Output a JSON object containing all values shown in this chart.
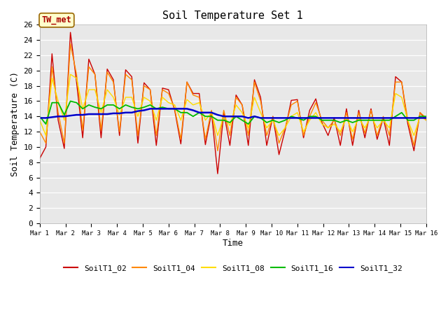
{
  "title": "Soil Temperature Set 1",
  "xlabel": "Time",
  "ylabel": "Soil Temperature (C)",
  "ylim": [
    0,
    26
  ],
  "xlim": [
    0,
    15
  ],
  "plot_bg": "#e8e8e8",
  "annotation": "TW_met",
  "xtick_labels": [
    "Mar 1",
    "Mar 2",
    "Mar 3",
    "Mar 4",
    "Mar 5",
    "Mar 6",
    "Mar 7",
    "Mar 8",
    "Mar 9",
    "Mar 10",
    "Mar 11",
    "Mar 12",
    "Mar 13",
    "Mar 14",
    "Mar 15",
    "Mar 16"
  ],
  "series_order": [
    "SoilT1_02",
    "SoilT1_04",
    "SoilT1_08",
    "SoilT1_16",
    "SoilT1_32"
  ],
  "series": {
    "SoilT1_02": {
      "color": "#cc0000",
      "lw": 1.0,
      "values": [
        8.5,
        10.0,
        22.2,
        13.5,
        9.8,
        25.0,
        18.5,
        11.2,
        21.5,
        19.5,
        11.2,
        20.2,
        18.8,
        11.5,
        20.1,
        19.2,
        10.5,
        18.4,
        17.5,
        10.2,
        17.7,
        17.5,
        14.8,
        10.4,
        18.5,
        17.0,
        17.0,
        10.3,
        14.5,
        6.5,
        14.5,
        10.2,
        16.8,
        15.5,
        10.2,
        18.8,
        16.5,
        10.2,
        14.0,
        9.0,
        12.2,
        16.1,
        16.2,
        11.2,
        14.8,
        16.3,
        13.2,
        11.5,
        13.8,
        10.2,
        15.0,
        10.2,
        14.8,
        11.2,
        15.0,
        11.0,
        13.8,
        10.2,
        19.2,
        18.5,
        13.0,
        9.5,
        14.5,
        13.5
      ]
    },
    "SoilT1_04": {
      "color": "#ff8800",
      "lw": 1.0,
      "values": [
        12.0,
        10.5,
        20.5,
        14.5,
        10.5,
        23.5,
        19.5,
        12.2,
        20.5,
        19.5,
        12.2,
        19.8,
        18.5,
        12.0,
        19.5,
        18.8,
        11.5,
        18.0,
        17.5,
        11.5,
        17.5,
        17.0,
        15.0,
        11.0,
        18.5,
        16.8,
        16.5,
        11.0,
        14.8,
        9.5,
        14.8,
        11.5,
        16.5,
        15.5,
        11.5,
        18.5,
        16.0,
        11.5,
        14.0,
        10.5,
        12.5,
        15.5,
        16.0,
        11.5,
        14.0,
        15.8,
        13.5,
        12.5,
        13.5,
        11.5,
        14.5,
        11.0,
        14.5,
        11.8,
        14.8,
        11.5,
        14.0,
        11.5,
        18.5,
        18.5,
        13.5,
        10.2,
        14.5,
        13.8
      ]
    },
    "SoilT1_08": {
      "color": "#ffdd00",
      "lw": 1.0,
      "values": [
        13.5,
        11.5,
        19.0,
        16.0,
        13.5,
        19.5,
        19.0,
        15.0,
        17.5,
        17.5,
        14.5,
        17.5,
        16.5,
        14.2,
        16.5,
        16.5,
        14.0,
        16.5,
        16.0,
        13.5,
        16.5,
        15.8,
        15.5,
        13.5,
        16.2,
        15.5,
        15.8,
        13.5,
        14.5,
        11.5,
        14.0,
        12.8,
        15.5,
        14.5,
        12.5,
        16.5,
        14.5,
        12.5,
        13.5,
        11.5,
        12.5,
        14.0,
        14.5,
        12.0,
        13.5,
        14.5,
        13.0,
        12.5,
        13.0,
        12.0,
        13.8,
        12.0,
        13.8,
        12.5,
        14.0,
        12.5,
        13.5,
        12.5,
        17.0,
        16.5,
        13.5,
        11.5,
        14.0,
        13.5
      ]
    },
    "SoilT1_16": {
      "color": "#00bb00",
      "lw": 1.3,
      "values": [
        14.0,
        13.0,
        15.8,
        15.8,
        14.2,
        16.0,
        15.8,
        15.0,
        15.5,
        15.2,
        15.0,
        15.5,
        15.5,
        15.0,
        15.5,
        15.2,
        15.0,
        15.2,
        15.5,
        15.0,
        15.2,
        15.0,
        15.0,
        14.5,
        14.5,
        14.0,
        14.5,
        14.0,
        14.0,
        13.5,
        13.5,
        13.2,
        14.0,
        13.5,
        13.0,
        14.0,
        13.8,
        13.2,
        13.5,
        13.2,
        13.5,
        14.0,
        13.8,
        13.5,
        14.0,
        14.0,
        13.5,
        13.5,
        13.5,
        13.2,
        13.5,
        13.2,
        13.5,
        13.5,
        13.5,
        13.5,
        13.5,
        13.5,
        14.0,
        14.5,
        13.5,
        13.5,
        14.0,
        14.0
      ]
    },
    "SoilT1_32": {
      "color": "#0000cc",
      "lw": 1.8,
      "values": [
        13.8,
        13.8,
        13.9,
        14.0,
        14.0,
        14.1,
        14.2,
        14.2,
        14.3,
        14.3,
        14.3,
        14.3,
        14.4,
        14.4,
        14.5,
        14.5,
        14.7,
        14.8,
        15.0,
        15.0,
        15.0,
        15.0,
        15.0,
        15.0,
        15.0,
        14.8,
        14.5,
        14.5,
        14.5,
        14.2,
        14.0,
        14.0,
        14.0,
        14.0,
        13.8,
        14.0,
        13.8,
        13.8,
        13.8,
        13.8,
        13.8,
        13.8,
        13.8,
        13.8,
        13.8,
        13.8,
        13.8,
        13.8,
        13.8,
        13.8,
        13.8,
        13.8,
        13.8,
        13.8,
        13.8,
        13.8,
        13.8,
        13.8,
        13.8,
        13.8,
        13.8,
        13.8,
        13.8,
        13.8
      ]
    }
  },
  "n_points": 64,
  "days": 15
}
